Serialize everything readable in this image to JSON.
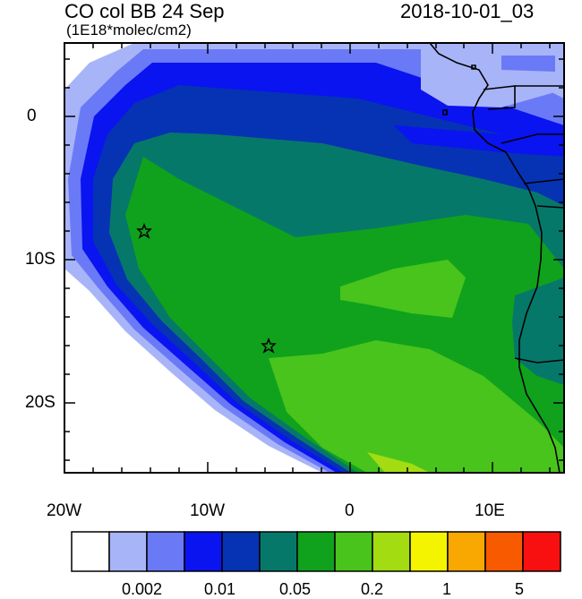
{
  "header": {
    "title_left": "CO col BB 24 Sep",
    "units": "(1E18*molec/cm2)",
    "title_right": "2018-10-01_03"
  },
  "map": {
    "x_ticks": [
      "20W",
      "10W",
      "0",
      "10E"
    ],
    "y_ticks": [
      "0",
      "10S",
      "20S"
    ],
    "extent": {
      "lon": [
        -20,
        15
      ],
      "lat": [
        -25,
        5
      ]
    },
    "markers": [
      {
        "name": "star",
        "lon": -14.5,
        "lat": -8
      },
      {
        "name": "star",
        "lon": -5.8,
        "lat": -16
      }
    ]
  },
  "colorbar": {
    "colors": [
      "#ffffff",
      "#a8b4f8",
      "#6a7af6",
      "#0a14f0",
      "#0632b4",
      "#06786a",
      "#10a21c",
      "#48c41c",
      "#a4dc12",
      "#f4f400",
      "#f8a800",
      "#f85a00",
      "#f81010"
    ],
    "labels": [
      "0.002",
      "0.01",
      "0.05",
      "0.2",
      "1",
      "5"
    ]
  }
}
